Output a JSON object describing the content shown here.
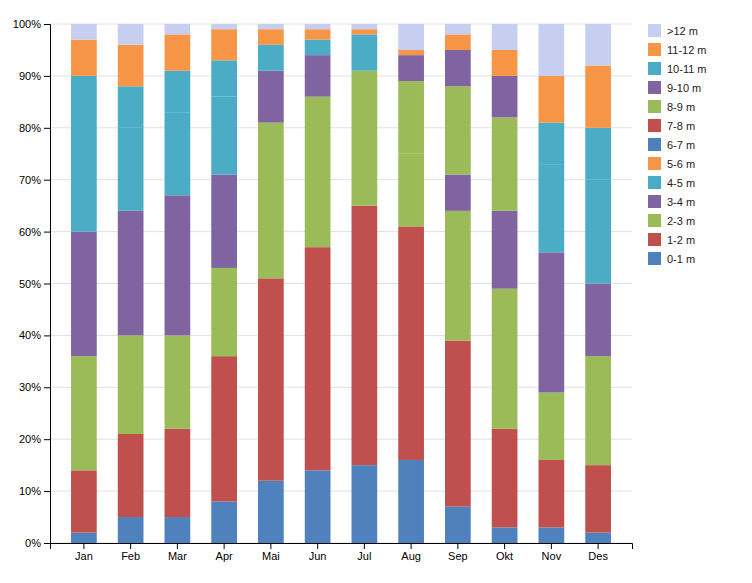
{
  "chart_data": {
    "type": "bar",
    "stacked": true,
    "grid": true,
    "legend": "right",
    "categories": [
      "Jan",
      "Feb",
      "Mar",
      "Apr",
      "Mai",
      "Jun",
      "Jul",
      "Aug",
      "Sep",
      "Okt",
      "Nov",
      "Des"
    ],
    "series": [
      {
        "name": "0-1 m",
        "color": "#4F81BD",
        "values": [
          2,
          5,
          5,
          8,
          12,
          14,
          15,
          16,
          7,
          3,
          3,
          2
        ]
      },
      {
        "name": "1-2 m",
        "color": "#C0504D",
        "values": [
          12,
          16,
          17,
          28,
          39,
          43,
          50,
          45,
          32,
          19,
          13,
          13
        ]
      },
      {
        "name": "2-3 m",
        "color": "#9BBB59",
        "values": [
          22,
          19,
          18,
          17,
          30,
          29,
          26,
          14,
          25,
          27,
          13,
          21
        ]
      },
      {
        "name": "3-4 m",
        "color": "#8064A2",
        "values": [
          24,
          24,
          27,
          18,
          10,
          8,
          0,
          0,
          7,
          15,
          27,
          14
        ]
      },
      {
        "name": "4-5 m",
        "color": "#4BACC6",
        "values": [
          19,
          16,
          16,
          15,
          0,
          0,
          0,
          0,
          0,
          0,
          17,
          20
        ]
      },
      {
        "name": "5-6 m",
        "color": "#F79646",
        "values": [
          0,
          0,
          0,
          0,
          0,
          0,
          0,
          0,
          0,
          0,
          0,
          0
        ]
      },
      {
        "name": "6-7 m",
        "color": "#4F81BD",
        "values": [
          0,
          0,
          0,
          0,
          0,
          0,
          0,
          0,
          0,
          0,
          0,
          0
        ]
      },
      {
        "name": "7-8 m",
        "color": "#C0504D",
        "values": [
          0,
          0,
          0,
          0,
          0,
          0,
          0,
          0,
          0,
          0,
          0,
          0
        ]
      },
      {
        "name": "8-9 m",
        "color": "#9BBB59",
        "values": [
          0,
          0,
          0,
          0,
          0,
          0,
          0,
          14,
          17,
          18,
          0,
          0
        ]
      },
      {
        "name": "9-10 m",
        "color": "#8064A2",
        "values": [
          0,
          0,
          0,
          0,
          0,
          0,
          0,
          5,
          7,
          8,
          0,
          0
        ]
      },
      {
        "name": "10-11 m",
        "color": "#4BACC6",
        "values": [
          11,
          8,
          8,
          7,
          5,
          3,
          7,
          0,
          0,
          0,
          8,
          10
        ]
      },
      {
        "name": "11-12 m",
        "color": "#F79646",
        "values": [
          7,
          8,
          7,
          6,
          3,
          2,
          1,
          1,
          3,
          5,
          9,
          12
        ]
      },
      {
        "name": ">12 m",
        "color": "#C6CFEF",
        "values": [
          3,
          4,
          2,
          1,
          1,
          1,
          1,
          5,
          2,
          5,
          10,
          8
        ]
      }
    ],
    "ylim": [
      0,
      100
    ],
    "yticks": [
      {
        "value": 0,
        "label": "0%"
      },
      {
        "value": 10,
        "label": "10%"
      },
      {
        "value": 20,
        "label": "20%"
      },
      {
        "value": 30,
        "label": "30%"
      },
      {
        "value": 40,
        "label": "40%"
      },
      {
        "value": 50,
        "label": "50%"
      },
      {
        "value": 60,
        "label": "60%"
      },
      {
        "value": 70,
        "label": "70%"
      },
      {
        "value": 80,
        "label": "80%"
      },
      {
        "value": 90,
        "label": "90%"
      },
      {
        "value": 100,
        "label": "100%"
      }
    ]
  }
}
